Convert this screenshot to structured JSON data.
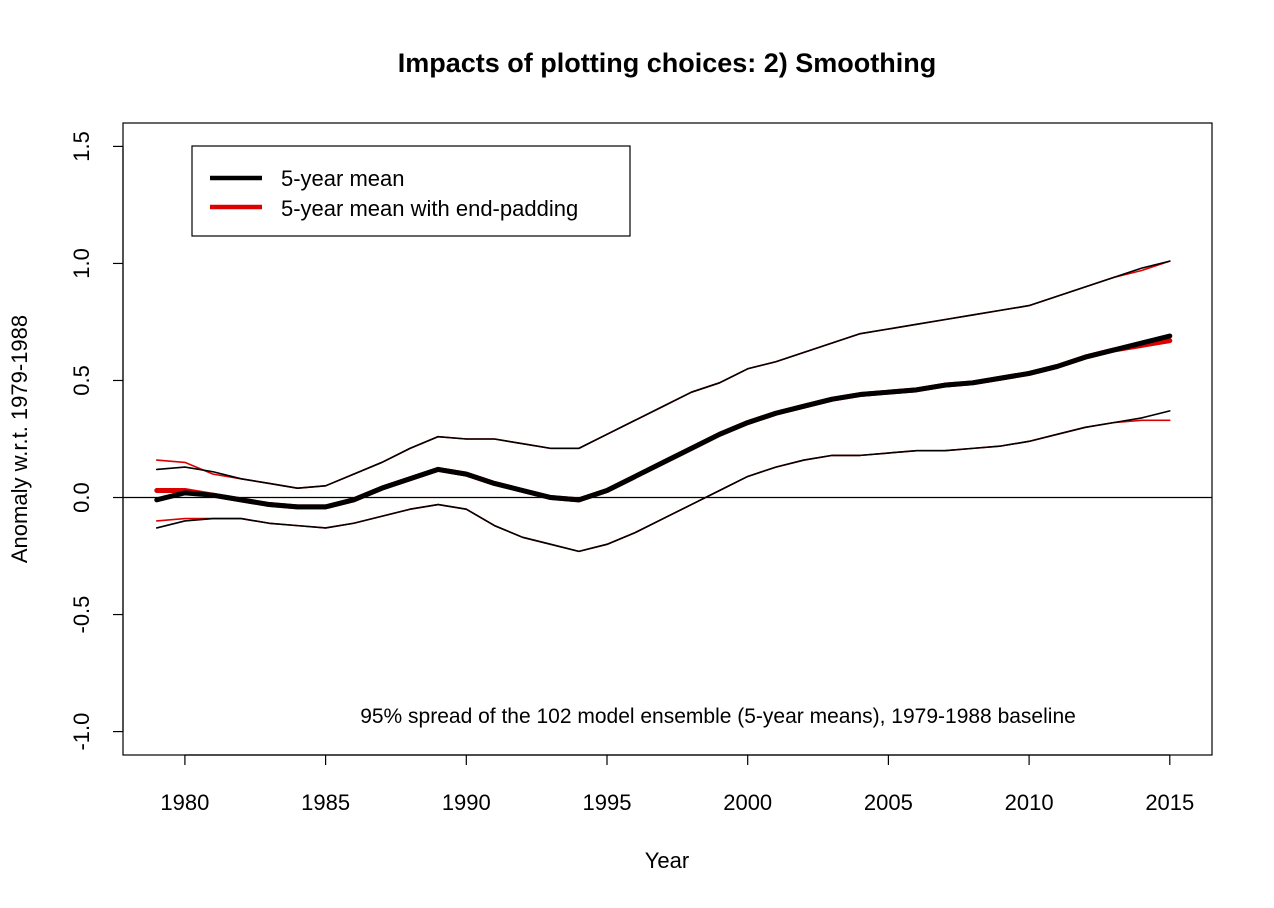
{
  "chart_data": {
    "type": "line",
    "title": "Impacts of plotting choices: 2) Smoothing",
    "xlabel": "Year",
    "ylabel": "Anomaly w.r.t. 1979-1988",
    "xlim": [
      1977.8,
      2016.5
    ],
    "ylim": [
      -1.1,
      1.6
    ],
    "x_ticks": [
      1980,
      1985,
      1990,
      1995,
      2000,
      2005,
      2010,
      2015
    ],
    "x_tick_labels": [
      "1980",
      "1985",
      "1990",
      "1995",
      "2000",
      "2005",
      "2010",
      "2015"
    ],
    "y_ticks": [
      -1.0,
      -0.5,
      0.0,
      0.5,
      1.0,
      1.5
    ],
    "y_tick_labels": [
      "-1.0",
      "-0.5",
      "0.0",
      "0.5",
      "1.0",
      "1.5"
    ],
    "zero_line": true,
    "grid": false,
    "annotation": "95% spread of the 102 model ensemble (5-year means), 1979-1988 baseline",
    "legend": {
      "placement": "top-left",
      "entries": [
        {
          "label": "5-year mean",
          "color": "#000000"
        },
        {
          "label": "5-year mean with end-padding",
          "color": "#dd0000"
        }
      ]
    },
    "x": [
      1979,
      1980,
      1981,
      1982,
      1983,
      1984,
      1985,
      1986,
      1987,
      1988,
      1989,
      1990,
      1991,
      1992,
      1993,
      1994,
      1995,
      1996,
      1997,
      1998,
      1999,
      2000,
      2001,
      2002,
      2003,
      2004,
      2005,
      2006,
      2007,
      2008,
      2009,
      2010,
      2011,
      2012,
      2013,
      2014,
      2015
    ],
    "series": [
      {
        "name": "5-year mean with end-padding",
        "role": "mean",
        "color": "#dd0000",
        "values": [
          0.03,
          0.03,
          0.01,
          -0.01,
          -0.03,
          -0.04,
          -0.04,
          -0.01,
          0.04,
          0.08,
          0.12,
          0.1,
          0.06,
          0.03,
          0.0,
          -0.01,
          0.03,
          0.09,
          0.15,
          0.21,
          0.27,
          0.32,
          0.36,
          0.39,
          0.42,
          0.44,
          0.45,
          0.46,
          0.48,
          0.49,
          0.51,
          0.53,
          0.56,
          0.6,
          0.63,
          0.65,
          0.67
        ]
      },
      {
        "name": "5-year mean with end-padding",
        "role": "upper",
        "color": "#dd0000",
        "values": [
          0.16,
          0.15,
          0.1,
          0.08,
          0.06,
          0.04,
          0.05,
          0.1,
          0.15,
          0.21,
          0.26,
          0.25,
          0.25,
          0.23,
          0.21,
          0.21,
          0.27,
          0.33,
          0.39,
          0.45,
          0.49,
          0.55,
          0.58,
          0.62,
          0.66,
          0.7,
          0.72,
          0.74,
          0.76,
          0.78,
          0.8,
          0.82,
          0.86,
          0.9,
          0.94,
          0.97,
          1.01
        ]
      },
      {
        "name": "5-year mean with end-padding",
        "role": "lower",
        "color": "#dd0000",
        "values": [
          -0.1,
          -0.09,
          -0.09,
          -0.09,
          -0.11,
          -0.12,
          -0.13,
          -0.11,
          -0.08,
          -0.05,
          -0.03,
          -0.05,
          -0.12,
          -0.17,
          -0.2,
          -0.23,
          -0.2,
          -0.15,
          -0.09,
          -0.03,
          0.03,
          0.09,
          0.13,
          0.16,
          0.18,
          0.18,
          0.19,
          0.2,
          0.2,
          0.21,
          0.22,
          0.24,
          0.27,
          0.3,
          0.32,
          0.33,
          0.33
        ]
      },
      {
        "name": "5-year mean",
        "role": "mean",
        "color": "#000000",
        "values": [
          -0.01,
          0.02,
          0.01,
          -0.01,
          -0.03,
          -0.04,
          -0.04,
          -0.01,
          0.04,
          0.08,
          0.12,
          0.1,
          0.06,
          0.03,
          0.0,
          -0.01,
          0.03,
          0.09,
          0.15,
          0.21,
          0.27,
          0.32,
          0.36,
          0.39,
          0.42,
          0.44,
          0.45,
          0.46,
          0.48,
          0.49,
          0.51,
          0.53,
          0.56,
          0.6,
          0.63,
          0.66,
          0.69
        ]
      },
      {
        "name": "5-year mean",
        "role": "upper",
        "color": "#000000",
        "values": [
          0.12,
          0.13,
          0.11,
          0.08,
          0.06,
          0.04,
          0.05,
          0.1,
          0.15,
          0.21,
          0.26,
          0.25,
          0.25,
          0.23,
          0.21,
          0.21,
          0.27,
          0.33,
          0.39,
          0.45,
          0.49,
          0.55,
          0.58,
          0.62,
          0.66,
          0.7,
          0.72,
          0.74,
          0.76,
          0.78,
          0.8,
          0.82,
          0.86,
          0.9,
          0.94,
          0.98,
          1.01
        ]
      },
      {
        "name": "5-year mean",
        "role": "lower",
        "color": "#000000",
        "values": [
          -0.13,
          -0.1,
          -0.09,
          -0.09,
          -0.11,
          -0.12,
          -0.13,
          -0.11,
          -0.08,
          -0.05,
          -0.03,
          -0.05,
          -0.12,
          -0.17,
          -0.2,
          -0.23,
          -0.2,
          -0.15,
          -0.09,
          -0.03,
          0.03,
          0.09,
          0.13,
          0.16,
          0.18,
          0.18,
          0.19,
          0.2,
          0.2,
          0.21,
          0.22,
          0.24,
          0.27,
          0.3,
          0.32,
          0.34,
          0.37
        ]
      }
    ]
  }
}
